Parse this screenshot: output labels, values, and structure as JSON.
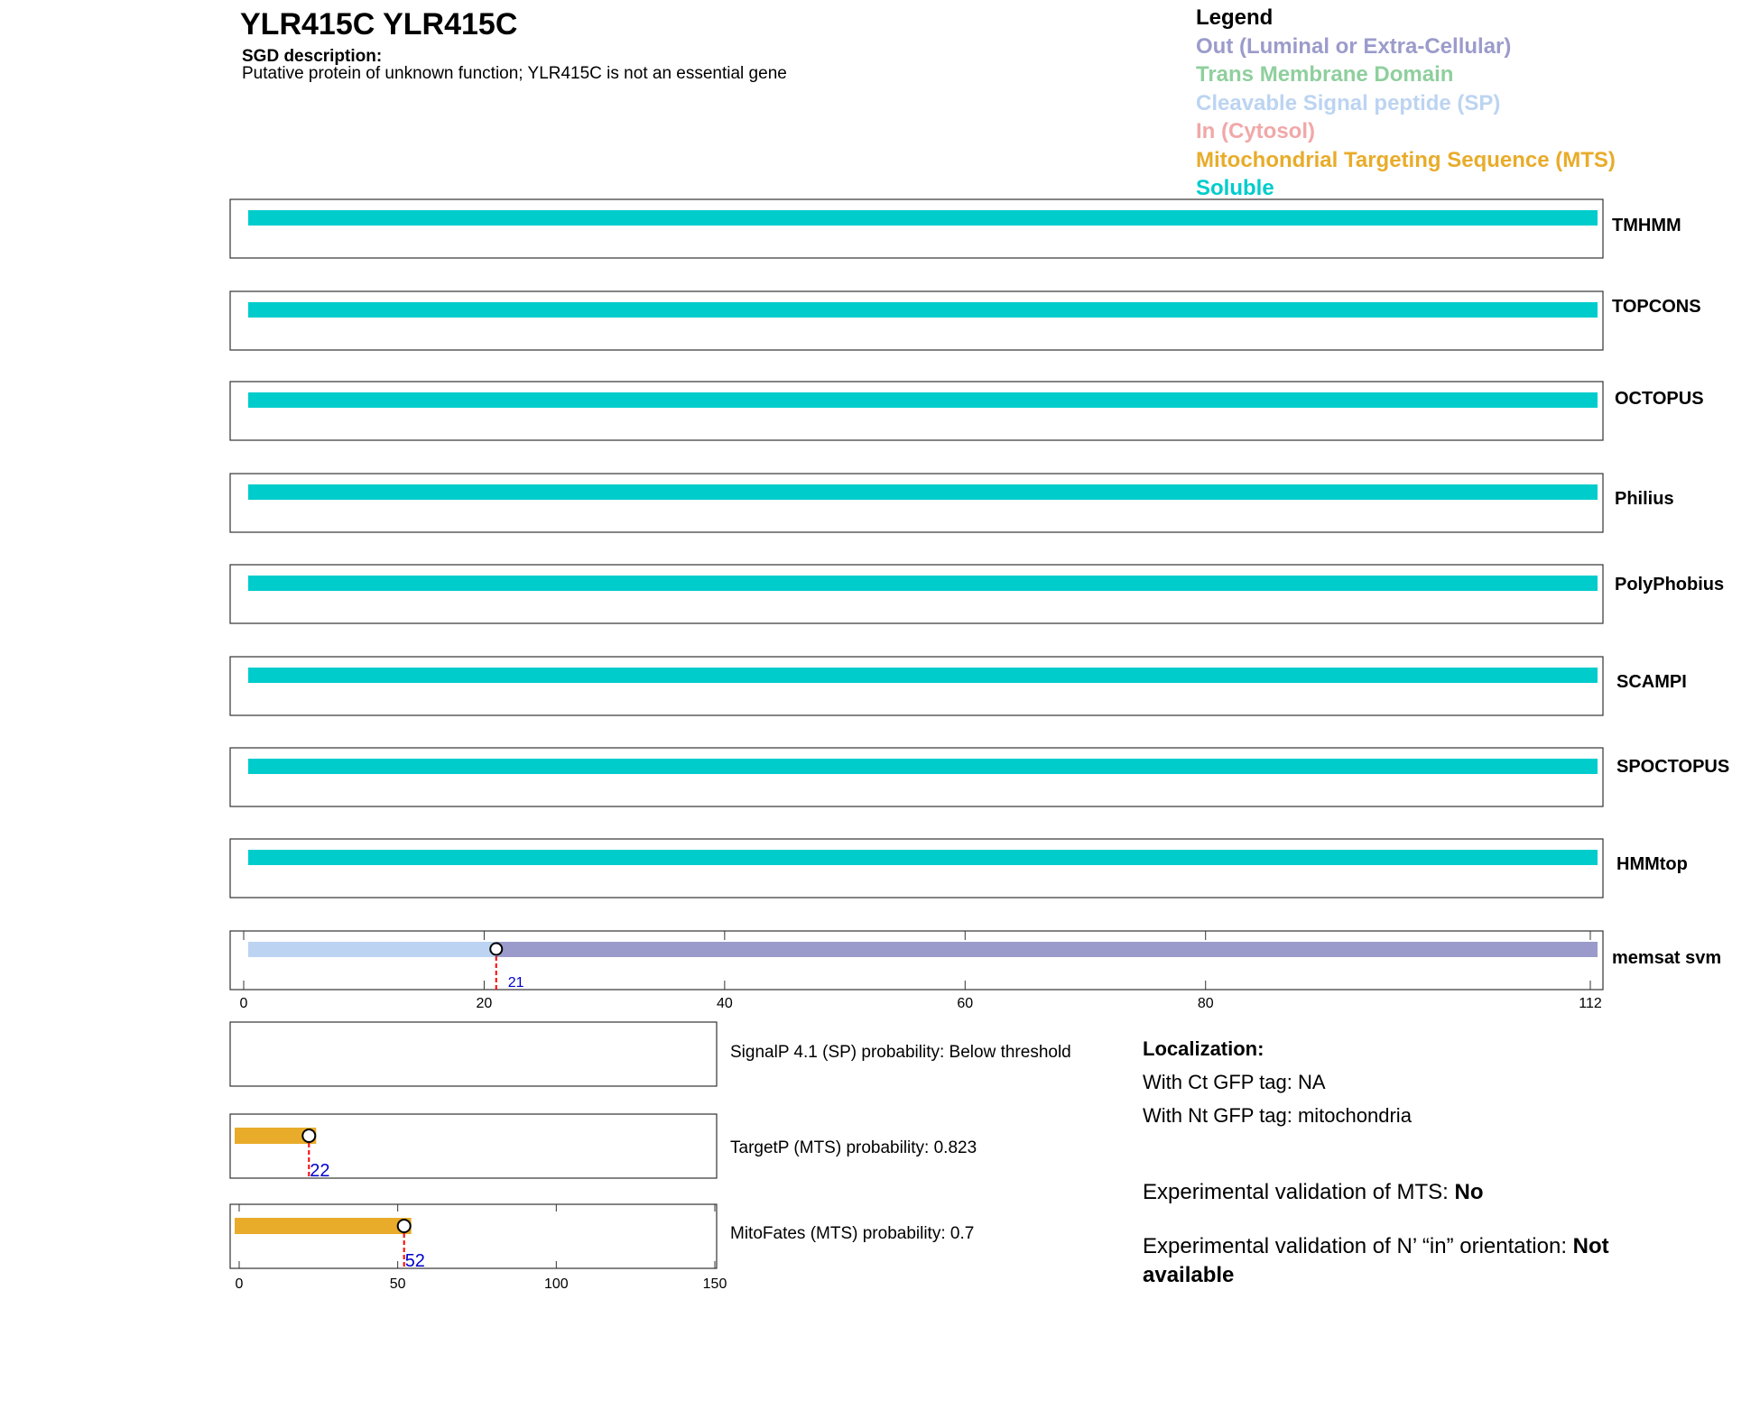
{
  "header": {
    "title": "YLR415C  YLR415C",
    "sgd_label": "SGD description:",
    "sgd_text": "Putative protein of unknown function; YLR415C is not an essential gene"
  },
  "legend": {
    "title": "Legend",
    "items": [
      {
        "label": "Out (Luminal or Extra-Cellular)",
        "color": "#9b9bcb"
      },
      {
        "label": "Trans Membrane Domain",
        "color": "#8fcf9d"
      },
      {
        "label": "Cleavable Signal peptide (SP)",
        "color": "#bcd4f2"
      },
      {
        "label": "In (Cytosol)",
        "color": "#f0a8a8"
      },
      {
        "label": "Mitochondrial Targeting Sequence (MTS)",
        "color": "#e8ac2a"
      },
      {
        "label": "Soluble",
        "color": "#00cccc"
      }
    ]
  },
  "colors": {
    "soluble": "#00cccc",
    "signal": "#bcd4f2",
    "out": "#9b9bcb",
    "mts": "#e8ac2a",
    "cleave_line": "#ff0000",
    "site_label": "#0000cc"
  },
  "chart_data": [
    {
      "type": "bar",
      "name": "topology predictions",
      "x_range": [
        1,
        112
      ],
      "predictors": [
        {
          "name": "TMHMM",
          "segments": [
            {
              "start": 1,
              "end": 112,
              "class": "soluble"
            }
          ]
        },
        {
          "name": "TOPCONS",
          "segments": [
            {
              "start": 1,
              "end": 112,
              "class": "soluble"
            }
          ]
        },
        {
          "name": "OCTOPUS",
          "segments": [
            {
              "start": 1,
              "end": 112,
              "class": "soluble"
            }
          ]
        },
        {
          "name": "Philius",
          "segments": [
            {
              "start": 1,
              "end": 112,
              "class": "soluble"
            }
          ]
        },
        {
          "name": "PolyPhobius",
          "segments": [
            {
              "start": 1,
              "end": 112,
              "class": "soluble"
            }
          ]
        },
        {
          "name": "SCAMPI",
          "segments": [
            {
              "start": 1,
              "end": 112,
              "class": "soluble"
            }
          ]
        },
        {
          "name": "SPOCTOPUS",
          "segments": [
            {
              "start": 1,
              "end": 112,
              "class": "soluble"
            }
          ]
        },
        {
          "name": "HMMtop",
          "segments": [
            {
              "start": 1,
              "end": 112,
              "class": "soluble"
            }
          ]
        },
        {
          "name": "memsat svm",
          "segments": [
            {
              "start": 1,
              "end": 21,
              "class": "signal"
            },
            {
              "start": 21,
              "end": 112,
              "class": "out"
            }
          ],
          "cleavage_site": 21,
          "cleavage_label": "21"
        }
      ],
      "x_ticks": [
        0,
        20,
        40,
        60,
        80,
        112
      ],
      "x_tick_labels": [
        "0",
        "20",
        "40",
        "60",
        "80",
        "112"
      ]
    },
    {
      "type": "bar",
      "name": "targeting predictions",
      "x_range": [
        0,
        150
      ],
      "x_ticks": [
        0,
        50,
        100,
        150
      ],
      "x_tick_labels": [
        "0",
        "50",
        "100",
        "150"
      ],
      "rows": [
        {
          "label": "SignalP 4.1 (SP) probability: Below threshold",
          "bar_end": null,
          "site": null,
          "site_label": ""
        },
        {
          "label": "TargetP (MTS) probability: 0.823",
          "bar_end": 22,
          "site": 22,
          "site_label": "22"
        },
        {
          "label": "MitoFates (MTS) probability: 0.7",
          "bar_end": 52,
          "site": 52,
          "site_label": "52"
        }
      ]
    }
  ],
  "localization": {
    "title": "Localization:",
    "ct": "With Ct GFP tag: NA",
    "nt": "With Nt GFP tag: mitochondria",
    "mts_prefix": "Experimental validation of MTS: ",
    "mts_value": "No",
    "orient_prefix": "Experimental validation of N’ “in” orientation: ",
    "orient_value": "Not available"
  }
}
